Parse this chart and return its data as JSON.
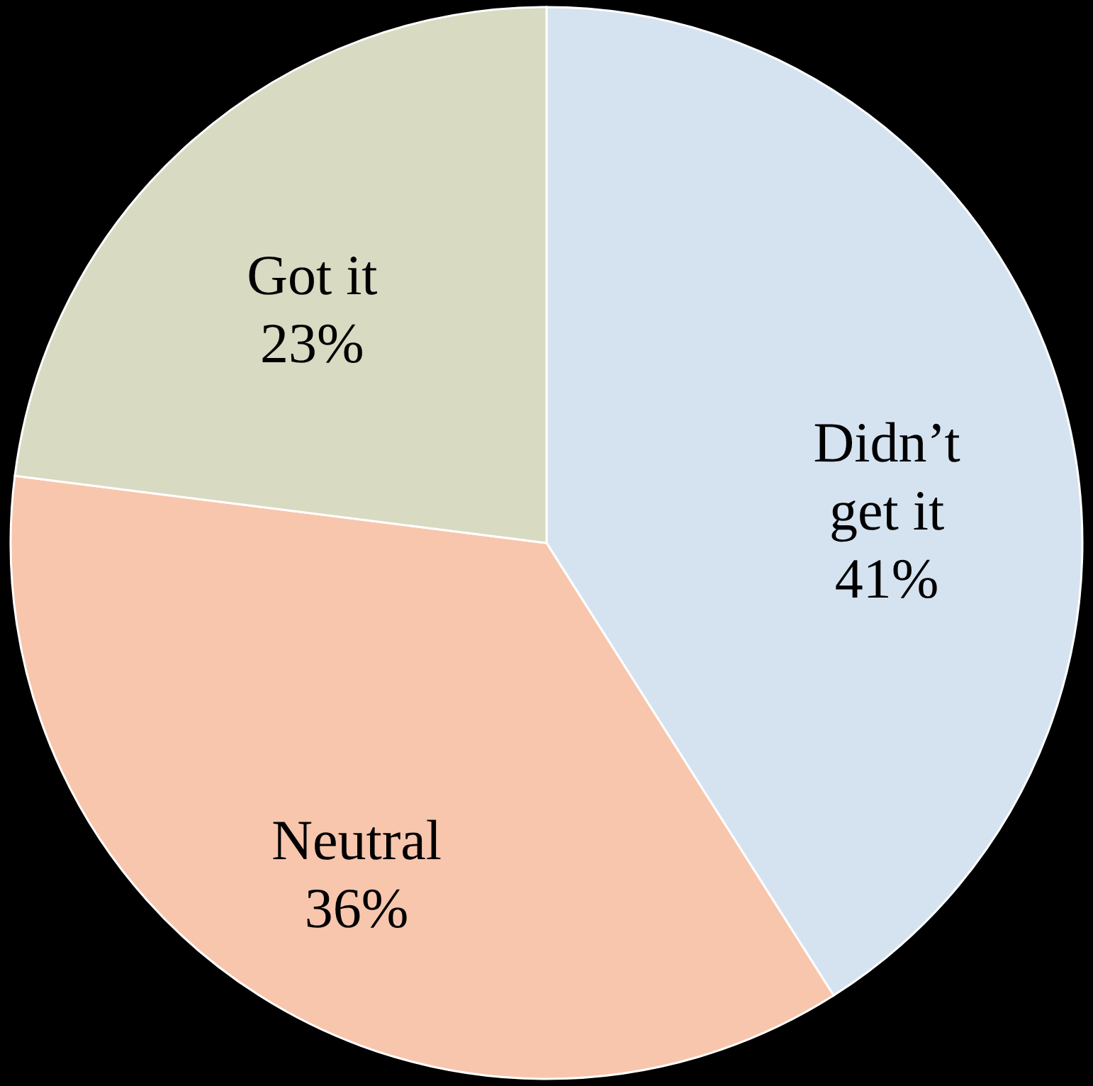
{
  "chart_data": {
    "type": "pie",
    "categories": [
      "Didn’t get it",
      "Neutral",
      "Got it"
    ],
    "values": [
      41,
      36,
      23
    ],
    "colors": [
      "#d5e3f1",
      "#f8c6ad",
      "#d8dac2"
    ],
    "value_labels": [
      "41%",
      "36%",
      "23%"
    ]
  }
}
